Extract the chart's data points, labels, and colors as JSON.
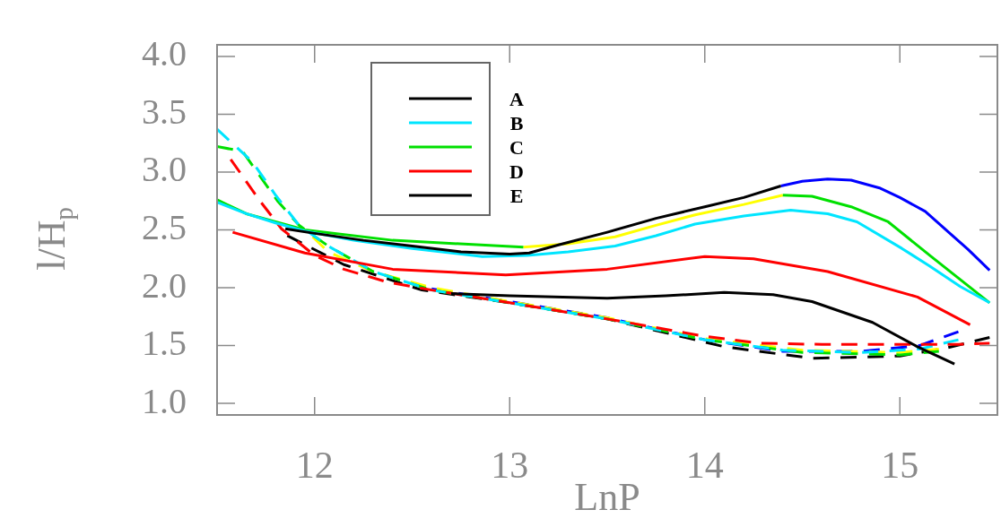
{
  "chart_data": {
    "type": "line",
    "xlabel": "LnP",
    "ylabel": "l/H$_{p}$",
    "xlim": [
      11.5,
      15.5
    ],
    "ylim": [
      0.9,
      4.1
    ],
    "xticks": [
      12,
      13,
      14,
      15
    ],
    "yticks": [
      {
        "value": 1.0,
        "label": "1.0"
      },
      {
        "value": 1.5,
        "label": "1.5"
      },
      {
        "value": 2.0,
        "label": "2.0"
      },
      {
        "value": 2.5,
        "label": "2.5"
      },
      {
        "value": 3.0,
        "label": "3.0"
      },
      {
        "value": 3.5,
        "label": "3.5"
      },
      {
        "value": 4.0,
        "label": "4.0"
      }
    ],
    "grid": false,
    "legend": "top",
    "marker": "none",
    "line_style": "solid",
    "series": [
      {
        "name": "A",
        "color": "#000000",
        "x": [
          11.85,
          12.0,
          12.25,
          12.5,
          12.75,
          13.0,
          13.1,
          13.25,
          13.5,
          13.75,
          14.0,
          14.2,
          14.39
        ],
        "values": [
          2.51,
          2.47,
          2.41,
          2.36,
          2.31,
          2.29,
          2.3,
          2.37,
          2.48,
          2.6,
          2.7,
          2.78,
          2.88
        ]
      },
      {
        "color": "#0000ff",
        "x": [
          14.39,
          14.5,
          14.63,
          14.75,
          14.9,
          15.0,
          15.13,
          15.25,
          15.35,
          15.46
        ],
        "values": [
          2.88,
          2.92,
          2.94,
          2.93,
          2.86,
          2.78,
          2.66,
          2.48,
          2.33,
          2.15
        ]
      },
      {
        "name": "B",
        "color": "#00e5ff",
        "x": [
          11.5,
          11.65,
          11.8,
          11.95,
          12.2,
          12.5,
          12.86,
          13.09,
          13.3,
          13.54,
          13.75,
          13.95,
          14.2,
          14.44,
          14.63,
          14.78,
          15.01,
          15.15,
          15.31,
          15.46
        ],
        "values": [
          2.74,
          2.64,
          2.56,
          2.49,
          2.41,
          2.34,
          2.27,
          2.28,
          2.31,
          2.36,
          2.45,
          2.55,
          2.62,
          2.67,
          2.64,
          2.57,
          2.34,
          2.19,
          2.01,
          1.87
        ]
      },
      {
        "name": "C",
        "color": "#00e000",
        "x": [
          11.5,
          11.65,
          11.95,
          12.4,
          13.07
        ],
        "values": [
          2.76,
          2.64,
          2.5,
          2.41,
          2.35
        ]
      },
      {
        "color": "#00e000",
        "x": [
          14.4,
          14.55,
          14.75,
          14.94,
          15.16,
          15.46
        ],
        "values": [
          2.8,
          2.79,
          2.7,
          2.57,
          2.27,
          1.87
        ]
      },
      {
        "color": "#ffff00",
        "x": [
          13.07,
          13.3,
          13.54,
          13.75,
          13.95,
          14.2,
          14.4
        ],
        "values": [
          2.35,
          2.38,
          2.44,
          2.54,
          2.63,
          2.72,
          2.8
        ]
      },
      {
        "name": "D",
        "color": "#ff0000",
        "x": [
          11.58,
          11.95,
          12.4,
          12.98,
          13.5,
          14.0,
          14.25,
          14.63,
          15.09,
          15.36
        ],
        "values": [
          2.48,
          2.3,
          2.16,
          2.11,
          2.16,
          2.27,
          2.25,
          2.14,
          1.92,
          1.68
        ]
      },
      {
        "name": "E",
        "color": "#000000",
        "x": [
          12.7,
          13.0,
          13.5,
          13.8,
          14.1,
          14.35,
          14.55,
          14.86,
          15.09,
          15.28
        ],
        "values": [
          1.95,
          1.93,
          1.91,
          1.93,
          1.96,
          1.94,
          1.88,
          1.7,
          1.49,
          1.34
        ]
      },
      {
        "color": "#ff0000",
        "line_style": "dashed",
        "x": [
          11.57,
          11.72,
          11.83,
          12.0,
          12.15,
          12.37,
          12.6,
          13.0,
          13.5,
          14.0,
          14.28,
          14.6,
          15.0,
          15.3,
          15.46
        ],
        "values": [
          3.11,
          2.75,
          2.51,
          2.28,
          2.16,
          2.05,
          1.98,
          1.87,
          1.73,
          1.58,
          1.52,
          1.51,
          1.51,
          1.51,
          1.52
        ]
      },
      {
        "color": "#00e5ff",
        "line_style": "dashed",
        "x": [
          11.5,
          11.68,
          11.8,
          11.92,
          12.07,
          12.3,
          12.6,
          13.0,
          13.5,
          14.0,
          14.4,
          14.8,
          15.1,
          15.3
        ],
        "values": [
          3.37,
          3.09,
          2.8,
          2.54,
          2.36,
          2.14,
          1.98,
          1.87,
          1.73,
          1.55,
          1.46,
          1.44,
          1.47,
          1.55
        ]
      },
      {
        "color": "#00e000",
        "line_style": "dashed",
        "x": [
          11.5,
          11.63,
          11.81,
          11.92,
          12.07,
          12.3,
          12.6,
          13.0,
          13.5,
          14.0,
          14.5,
          15.0,
          15.2
        ],
        "values": [
          3.22,
          3.18,
          2.75,
          2.54,
          2.36,
          2.14,
          1.98,
          1.87,
          1.73,
          1.55,
          1.44,
          1.42,
          1.45
        ]
      },
      {
        "color": "#ffff00",
        "line_style": "dashed",
        "x": [
          11.99,
          12.07,
          12.3,
          12.6,
          13.0,
          13.5,
          14.0,
          14.5,
          15.0,
          15.2
        ],
        "values": [
          2.44,
          2.31,
          2.14,
          2.0,
          1.88,
          1.74,
          1.56,
          1.46,
          1.44,
          1.47
        ]
      },
      {
        "color": "#0000ff",
        "line_style": "dashed",
        "x": [
          12.6,
          13.0,
          13.5,
          14.0,
          14.4,
          14.8,
          15.1,
          15.3
        ],
        "values": [
          1.99,
          1.88,
          1.74,
          1.55,
          1.45,
          1.45,
          1.5,
          1.62
        ]
      },
      {
        "color": "#000000",
        "line_style": "dashed",
        "x": [
          11.86,
          12.15,
          12.55,
          13.0,
          13.5,
          14.1,
          14.55,
          15.0,
          15.24,
          15.46
        ],
        "values": [
          2.45,
          2.2,
          1.98,
          1.87,
          1.73,
          1.49,
          1.39,
          1.41,
          1.48,
          1.57
        ]
      }
    ]
  }
}
